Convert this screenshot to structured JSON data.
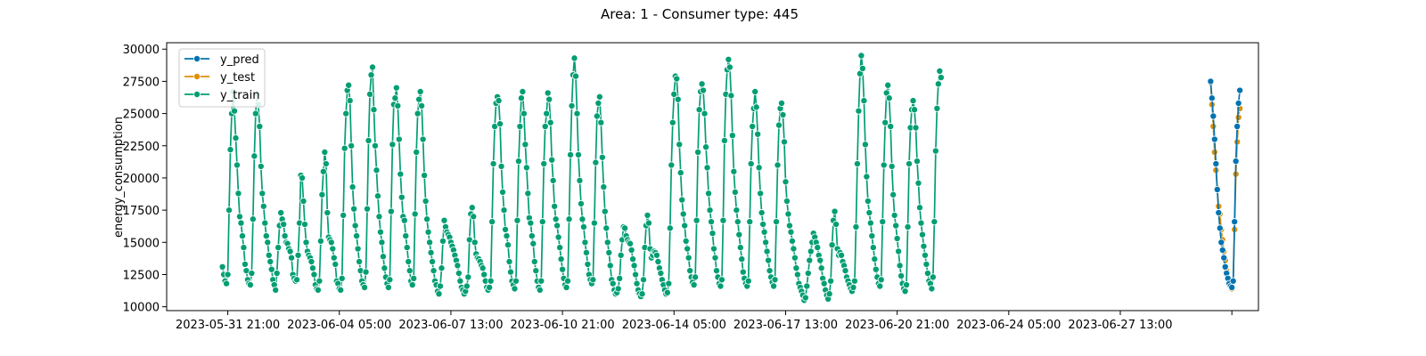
{
  "chart_data": {
    "type": "line",
    "title": "Area: 1 - Consumer type: 445",
    "xlabel": "",
    "ylabel": "energy_consumption",
    "x_start": "2023-05-31 17:00",
    "x_step": "1 hour",
    "grid": false,
    "legend_placement": "top-left",
    "ylim": [
      9700,
      30500
    ],
    "xlim": [
      "2023-05-29 23:00",
      "2023-07-03 05:00"
    ],
    "x_tick_labels": [
      "2023-05-31 21:00",
      "2023-06-04 05:00",
      "2023-06-07 13:00",
      "2023-06-10 21:00",
      "2023-06-14 05:00",
      "2023-06-17 13:00",
      "2023-06-20 21:00",
      "2023-06-24 05:00",
      "2023-06-27 13:00",
      ""
    ],
    "y_ticks": [
      10000,
      12500,
      15000,
      17500,
      20000,
      22500,
      25000,
      27500,
      30000
    ],
    "y_tick_labels": [
      "10000",
      "12500",
      "15000",
      "17500",
      "20000",
      "22500",
      "25000",
      "27500",
      "30000"
    ],
    "colors": {
      "y_pred": "#0173b2",
      "y_test": "#de8f05",
      "y_train": "#029e73"
    },
    "series": [
      {
        "name": "y_pred",
        "x_start": "2023-07-01 17:00",
        "values": [
          27500,
          26200,
          24800,
          23000,
          21100,
          19100,
          17300,
          16100,
          15000,
          14400,
          13800,
          13100,
          12600,
          12200,
          11800,
          11600,
          11500,
          12000,
          16600,
          21300,
          24000,
          25800,
          26800
        ]
      },
      {
        "name": "y_test",
        "x_start": "2023-07-01 17:00",
        "values": [
          27400,
          25700,
          24000,
          22000,
          20600,
          19200,
          17800,
          17200,
          16000,
          15200,
          14300,
          13600,
          12800,
          12200,
          11900,
          11600,
          11400,
          12000,
          16000,
          20300,
          22800,
          24700,
          25400
        ]
      },
      {
        "name": "y_train",
        "x_start": "2023-05-31 17:00",
        "values": [
          13100,
          12500,
          12000,
          11800,
          12500,
          17500,
          22200,
          25000,
          26700,
          25200,
          23100,
          21000,
          18800,
          17000,
          16500,
          15500,
          14600,
          13300,
          12800,
          12100,
          11800,
          11700,
          12600,
          16800,
          21700,
          25000,
          26500,
          25700,
          24000,
          20900,
          18800,
          17800,
          16500,
          15500,
          15000,
          14000,
          13500,
          12900,
          12100,
          11700,
          11300,
          12600,
          14600,
          16300,
          17300,
          16800,
          16400,
          15500,
          15000,
          14900,
          14500,
          14300,
          13800,
          12500,
          12200,
          12000,
          12100,
          14000,
          16500,
          20200,
          20000,
          18200,
          16400,
          15000,
          14300,
          14000,
          13800,
          13500,
          13000,
          12500,
          11700,
          11400,
          11300,
          12000,
          15100,
          18700,
          20500,
          22000,
          21100,
          17300,
          15400,
          15200,
          15000,
          14500,
          13800,
          13300,
          12000,
          11800,
          11400,
          11300,
          12200,
          17100,
          22300,
          25000,
          26800,
          27200,
          26000,
          22500,
          19300,
          17600,
          16300,
          15500,
          14500,
          13500,
          12800,
          12000,
          11700,
          11500,
          12700,
          17600,
          22900,
          26500,
          28000,
          28600,
          25300,
          22500,
          20600,
          18600,
          17000,
          15800,
          15000,
          13900,
          13000,
          12300,
          11800,
          11500,
          12100,
          17400,
          22600,
          25700,
          26200,
          27000,
          25600,
          23000,
          20300,
          18500,
          17000,
          16700,
          15500,
          14600,
          13500,
          12800,
          12000,
          11700,
          12200,
          17200,
          22000,
          25000,
          26100,
          26700,
          25600,
          23000,
          20200,
          18200,
          16800,
          15800,
          15000,
          14200,
          13500,
          12800,
          12000,
          11700,
          11200,
          11000,
          11600,
          13000,
          15100,
          16700,
          16200,
          15800,
          15600,
          15400,
          15000,
          14700,
          14400,
          14000,
          13600,
          13200,
          12600,
          12000,
          11500,
          11300,
          11000,
          11200,
          11600,
          12300,
          15200,
          17200,
          17700,
          17000,
          15000,
          14100,
          13800,
          13700,
          13500,
          13200,
          13000,
          12500,
          12000,
          11500,
          11300,
          11500,
          12000,
          16600,
          21100,
          24000,
          25800,
          26300,
          26000,
          24200,
          20900,
          18900,
          17500,
          16000,
          15500,
          14800,
          13500,
          12700,
          12000,
          11700,
          11400,
          12000,
          16700,
          21300,
          24000,
          26200,
          26700,
          25000,
          22600,
          20800,
          18800,
          16900,
          16500,
          15500,
          14900,
          13500,
          12800,
          12000,
          11500,
          11300,
          12000,
          16600,
          21100,
          24000,
          25000,
          26600,
          26100,
          24300,
          21400,
          19800,
          17800,
          16800,
          16300,
          15400,
          14600,
          13700,
          12900,
          12200,
          11700,
          11500,
          12000,
          16800,
          21800,
          25600,
          28000,
          29300,
          27900,
          25000,
          21800,
          19800,
          18000,
          16800,
          16200,
          15000,
          14200,
          13300,
          12500,
          12100,
          11800,
          12100,
          16500,
          21200,
          24800,
          25800,
          26300,
          24300,
          21600,
          19300,
          17400,
          16100,
          15000,
          14200,
          13200,
          12100,
          11800,
          11300,
          11000,
          11100,
          11400,
          12200,
          14000,
          15200,
          16200,
          16100,
          15500,
          15200,
          15000,
          14900,
          14400,
          13700,
          13200,
          12500,
          11800,
          11300,
          11000,
          10800,
          11000,
          12100,
          14600,
          16300,
          17100,
          16500,
          14500,
          13800,
          14000,
          14300,
          14200,
          14000,
          13500,
          13000,
          12600,
          12100,
          11700,
          11300,
          11000,
          11100,
          11800,
          16100,
          21000,
          24300,
          26500,
          27900,
          27700,
          26100,
          22600,
          20400,
          18300,
          17200,
          16300,
          15100,
          14500,
          13800,
          12800,
          12300,
          11900,
          11700,
          12300,
          16700,
          22000,
          25300,
          26700,
          27300,
          26800,
          25000,
          22400,
          20800,
          18800,
          17500,
          16600,
          15700,
          14500,
          13800,
          12800,
          12300,
          11800,
          11600,
          12100,
          16700,
          22900,
          26500,
          28400,
          29200,
          28600,
          26400,
          23300,
          20500,
          18900,
          17500,
          16600,
          15600,
          14600,
          13700,
          12700,
          12200,
          11800,
          11600,
          12000,
          16600,
          21100,
          24000,
          25400,
          26700,
          25500,
          23400,
          20800,
          18800,
          17300,
          16400,
          15800,
          15000,
          14300,
          13600,
          12800,
          12300,
          11900,
          11600,
          12100,
          16600,
          21000,
          24100,
          25400,
          25800,
          24900,
          22800,
          19700,
          18200,
          17200,
          16300,
          15800,
          15100,
          14500,
          13800,
          13000,
          12500,
          11800,
          11500,
          11200,
          10900,
          10500,
          10700,
          11600,
          12600,
          13600,
          14300,
          15000,
          15700,
          15400,
          15000,
          14600,
          14000,
          13600,
          13000,
          12200,
          11800,
          11300,
          10900,
          10600,
          11000,
          12000,
          14800,
          16700,
          17400,
          16400,
          14500,
          14000,
          14200,
          14000,
          13500,
          13200,
          12800,
          12300,
          12000,
          11700,
          11400,
          11200,
          11500,
          12000,
          16200,
          21100,
          25200,
          28100,
          29500,
          28500,
          26000,
          22600,
          20100,
          18200,
          17300,
          16500,
          15500,
          14600,
          13700,
          12900,
          12300,
          11800,
          11600,
          12100,
          16600,
          21000,
          24300,
          26600,
          27200,
          26200,
          24000,
          20900,
          18700,
          17100,
          16300,
          15300,
          14300,
          13200,
          12400,
          11800,
          11400,
          11200,
          11700,
          16200,
          21100,
          23900,
          25300,
          26000,
          25300,
          23900,
          21300,
          19600,
          17700,
          16500,
          15600,
          14700,
          14000,
          13300,
          12600,
          12000,
          11800,
          11400,
          12300,
          16600,
          22100,
          25400,
          27300,
          28300,
          27800
        ]
      }
    ]
  }
}
